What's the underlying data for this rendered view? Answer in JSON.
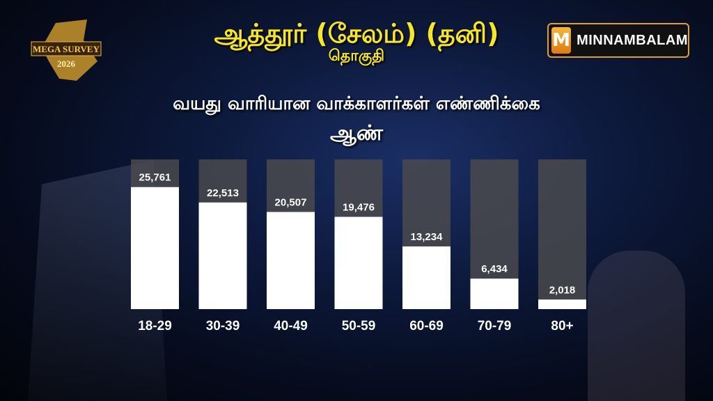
{
  "header": {
    "title": "ஆத்தூர் (சேலம்) (தனி)",
    "subtitle": "தொகுதி",
    "brand": "MINNAMBALAM",
    "brand_initial": "M",
    "logo_text": "MEGA SURVEY 2026"
  },
  "colors": {
    "title": "#f8e71c",
    "bar": "#ffffff",
    "bar_bg": "#4a4a4e"
  },
  "chart_data": {
    "type": "bar",
    "title": "வயது வாரியான வாக்காளர்கள் எண்ணிக்கை",
    "subtitle": "ஆண்",
    "categories": [
      "18-29",
      "30-39",
      "40-49",
      "50-59",
      "60-69",
      "70-79",
      "80+"
    ],
    "values": [
      25761,
      22513,
      20507,
      19476,
      13234,
      6434,
      2018
    ],
    "value_labels": [
      "25,761",
      "22,513",
      "20,507",
      "19,476",
      "13,234",
      "6,434",
      "2,018"
    ],
    "xlabel": "",
    "ylabel": "",
    "ylim": [
      0,
      31600
    ],
    "grid": false
  }
}
